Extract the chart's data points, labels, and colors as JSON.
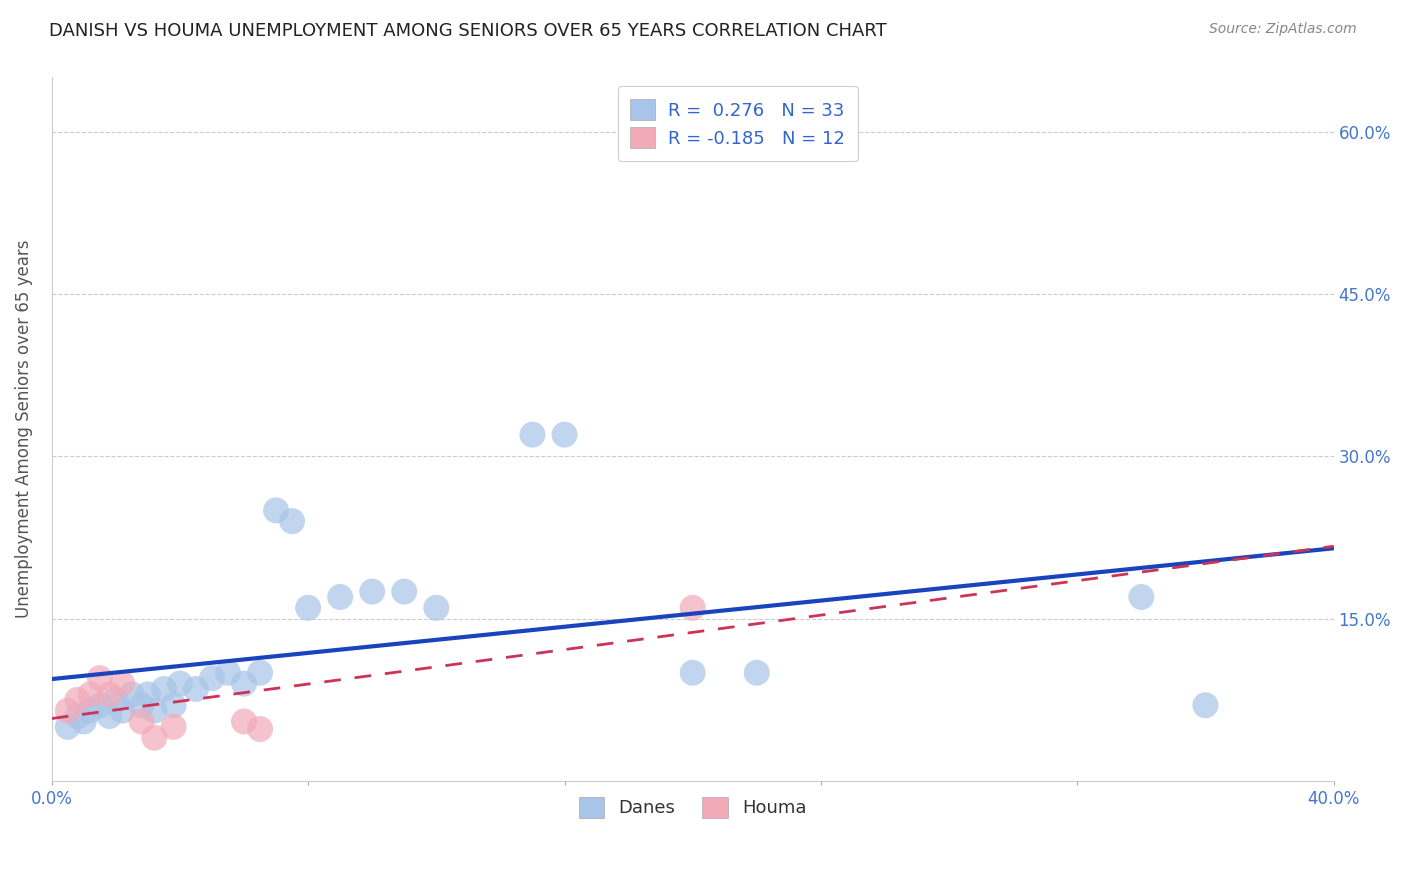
{
  "title": "DANISH VS HOUMA UNEMPLOYMENT AMONG SENIORS OVER 65 YEARS CORRELATION CHART",
  "source": "Source: ZipAtlas.com",
  "ylabel": "Unemployment Among Seniors over 65 years",
  "xlim": [
    0.0,
    0.4
  ],
  "ylim": [
    0.0,
    0.65
  ],
  "xticks": [
    0.0,
    0.08,
    0.16,
    0.24,
    0.32,
    0.4
  ],
  "xticklabels": [
    "0.0%",
    "",
    "",
    "",
    "",
    "40.0%"
  ],
  "ytick_positions": [
    0.0,
    0.15,
    0.3,
    0.45,
    0.6
  ],
  "ytick_labels_right": [
    "",
    "15.0%",
    "30.0%",
    "45.0%",
    "60.0%"
  ],
  "danes_color": "#a8c4e8",
  "houma_color": "#f2aab8",
  "danes_line_color": "#1a44bb",
  "houma_line_color": "#cc3355",
  "legend_r_danes": "R =  0.276",
  "legend_n_danes": "N = 33",
  "legend_r_houma": "R = -0.185",
  "legend_n_houma": "N = 12",
  "danes_x": [
    0.005,
    0.008,
    0.01,
    0.012,
    0.015,
    0.018,
    0.02,
    0.022,
    0.025,
    0.028,
    0.03,
    0.032,
    0.035,
    0.038,
    0.04,
    0.045,
    0.05,
    0.055,
    0.06,
    0.065,
    0.07,
    0.075,
    0.08,
    0.09,
    0.1,
    0.11,
    0.12,
    0.15,
    0.16,
    0.2,
    0.22,
    0.34,
    0.36
  ],
  "danes_y": [
    0.05,
    0.06,
    0.055,
    0.065,
    0.07,
    0.06,
    0.075,
    0.065,
    0.08,
    0.07,
    0.08,
    0.065,
    0.085,
    0.07,
    0.09,
    0.085,
    0.095,
    0.1,
    0.09,
    0.1,
    0.25,
    0.24,
    0.16,
    0.17,
    0.175,
    0.175,
    0.16,
    0.32,
    0.32,
    0.1,
    0.1,
    0.17,
    0.07
  ],
  "houma_x": [
    0.005,
    0.008,
    0.012,
    0.015,
    0.018,
    0.022,
    0.028,
    0.032,
    0.038,
    0.06,
    0.065,
    0.2
  ],
  "houma_y": [
    0.065,
    0.075,
    0.08,
    0.095,
    0.08,
    0.09,
    0.055,
    0.04,
    0.05,
    0.055,
    0.048,
    0.16
  ],
  "background_color": "#ffffff",
  "grid_color": "#cccccc"
}
